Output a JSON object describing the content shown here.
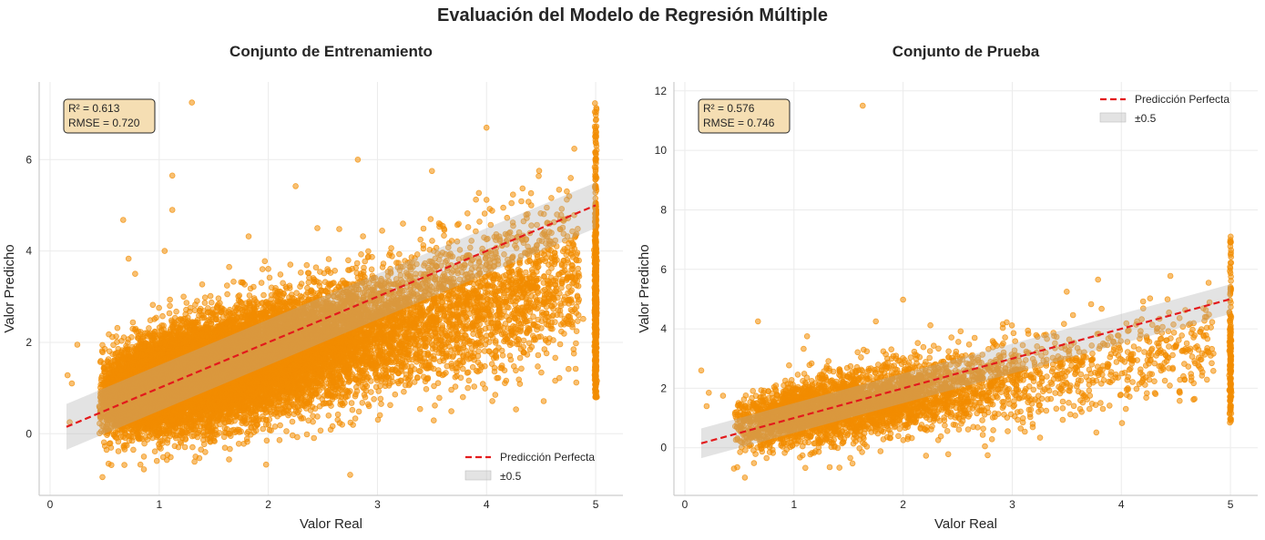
{
  "suptitle": "Evaluación del Modelo de Regresión Múltiple",
  "colors": {
    "points": "#f28c00",
    "perfect_line": "#e31a1c",
    "band": "#b0b0b0",
    "annot_bg": "#f5deb3",
    "grid": "#ebebeb",
    "axis": "#cccccc"
  },
  "chart_data": [
    {
      "type": "scatter",
      "title": "Conjunto de Entrenamiento",
      "xlabel": "Valor Real",
      "ylabel": "Valor Predicho",
      "xlim": [
        -0.1,
        5.25
      ],
      "ylim": [
        -1.35,
        7.7
      ],
      "xticks": [
        0,
        1,
        2,
        3,
        4,
        5
      ],
      "yticks": [
        0,
        2,
        4,
        6
      ],
      "grid": true,
      "annotation": [
        "R² = 0.613",
        "RMSE = 0.720"
      ],
      "annotation_position": "top-left",
      "legend": [
        "Predicción Perfecta",
        "±0.5"
      ],
      "legend_position": "lower-right",
      "metrics": {
        "r2": 0.613,
        "rmse": 0.72
      },
      "perfect_line": {
        "x": [
          0.15,
          5.0
        ],
        "y": [
          0.15,
          5.0
        ]
      },
      "band_halfwidth": 0.5,
      "n_points_approx": 16500,
      "model": {
        "intercept": 0.48,
        "slope": 0.6,
        "noise_sd": 0.58
      },
      "outliers": [
        [
          1.3,
          7.25
        ],
        [
          1.12,
          5.65
        ],
        [
          1.12,
          4.9
        ],
        [
          0.67,
          4.68
        ],
        [
          1.05,
          4.0
        ],
        [
          2.25,
          5.42
        ],
        [
          2.82,
          6.0
        ],
        [
          3.5,
          5.75
        ],
        [
          4.0,
          6.7
        ],
        [
          3.93,
          5.27
        ],
        [
          4.0,
          5.12
        ],
        [
          4.33,
          5.37
        ],
        [
          1.82,
          4.32
        ],
        [
          2.45,
          4.5
        ],
        [
          2.75,
          -0.9
        ],
        [
          0.48,
          -0.95
        ],
        [
          0.86,
          -0.78
        ],
        [
          0.16,
          1.28
        ],
        [
          0.2,
          1.1
        ],
        [
          0.25,
          1.95
        ],
        [
          0.18,
          0.25
        ],
        [
          4.08,
          0.85
        ],
        [
          1.75,
          0.05
        ],
        [
          0.72,
          3.83
        ],
        [
          0.78,
          3.5
        ]
      ],
      "capped_x": 5.0,
      "capped_y_range": [
        0.8,
        7.25
      ]
    },
    {
      "type": "scatter",
      "title": "Conjunto de Prueba",
      "xlabel": "Valor Real",
      "ylabel": "Valor Predicho",
      "xlim": [
        -0.1,
        5.25
      ],
      "ylim": [
        -1.6,
        12.3
      ],
      "xticks": [
        0,
        1,
        2,
        3,
        4,
        5
      ],
      "yticks": [
        0,
        2,
        4,
        6,
        8,
        10,
        12
      ],
      "grid": true,
      "annotation": [
        "R² = 0.576",
        "RMSE = 0.746"
      ],
      "annotation_position": "top-left",
      "legend": [
        "Predicción Perfecta",
        "±0.5"
      ],
      "legend_position": "upper-right",
      "metrics": {
        "r2": 0.576,
        "rmse": 0.746
      },
      "perfect_line": {
        "x": [
          0.15,
          5.0
        ],
        "y": [
          0.15,
          5.0
        ]
      },
      "band_halfwidth": 0.5,
      "n_points_approx": 4100,
      "model": {
        "intercept": 0.5,
        "slope": 0.6,
        "noise_sd": 0.58
      },
      "outliers": [
        [
          1.63,
          11.5
        ],
        [
          0.67,
          4.25
        ],
        [
          1.12,
          3.75
        ],
        [
          1.75,
          4.25
        ],
        [
          2.25,
          4.12
        ],
        [
          2.0,
          4.98
        ],
        [
          2.95,
          4.22
        ],
        [
          3.5,
          5.25
        ],
        [
          4.2,
          4.92
        ],
        [
          4.45,
          5.78
        ],
        [
          4.8,
          5.55
        ],
        [
          0.15,
          2.6
        ],
        [
          0.22,
          1.85
        ],
        [
          0.45,
          -0.7
        ],
        [
          0.55,
          -1.0
        ],
        [
          2.75,
          0.05
        ],
        [
          0.35,
          1.75
        ],
        [
          0.2,
          1.4
        ]
      ],
      "capped_x": 5.0,
      "capped_y_range": [
        0.85,
        7.25
      ]
    }
  ]
}
